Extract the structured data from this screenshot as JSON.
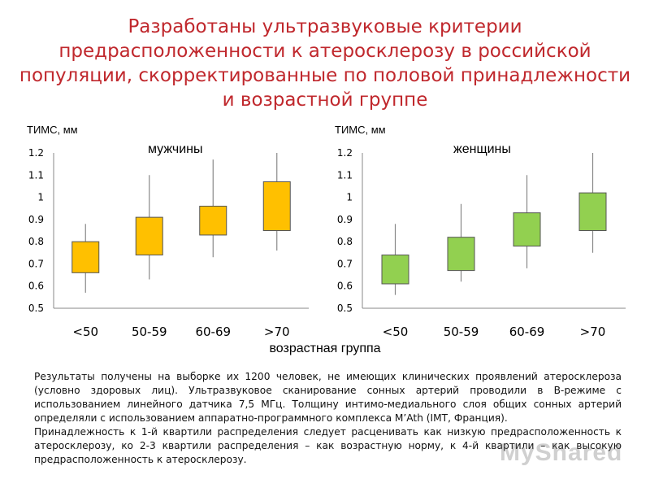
{
  "title": "Разработаны ультразвуковые критерии предрасположенности к атеросклерозу в российской популяции, скорректированные по половой принадлежности и возрастной группе",
  "xaxis_title": "возрастная группа",
  "paragraphs": [
    "Результаты получены на выборке их 1200 человек, не имеющих клинических проявлений атеросклероза (условно здоровых лиц). Ультразвуковое сканирование сонных артерий проводили в В-режиме с использованием линейного датчика 7,5 МГц. Толщину интимо-медиального слоя общих сонных артерий определяли с использованием аппаратно-программного комплекса M’Ath (IMT, Франция).",
    "Принадлежность к 1-й квартили распределения следует расценивать как низкую предрасположенность к атеросклерозу, ко 2-3 квартили распределения – как возрастную норму, к 4-й квартили – как высокую предрасположенность к атеросклерозу."
  ],
  "watermark": "MyShared",
  "chart_data": [
    {
      "type": "box",
      "title": "мужчины",
      "ylabel": "ТИМС, мм",
      "categories": [
        "<50",
        "50-59",
        "60-69",
        ">70"
      ],
      "ylim": [
        0.5,
        1.2
      ],
      "yticks": [
        "0.5",
        "0.6",
        "0.7",
        "0.8",
        "0.9",
        "1",
        "1.1",
        "1.2"
      ],
      "color": "#ffc000",
      "boxes": [
        {
          "min": 0.57,
          "q1": 0.66,
          "q3": 0.8,
          "max": 0.88
        },
        {
          "min": 0.63,
          "q1": 0.74,
          "q3": 0.91,
          "max": 1.1
        },
        {
          "min": 0.73,
          "q1": 0.83,
          "q3": 0.96,
          "max": 1.17
        },
        {
          "min": 0.76,
          "q1": 0.85,
          "q3": 1.07,
          "max": 1.2
        }
      ]
    },
    {
      "type": "box",
      "title": "женщины",
      "ylabel": "ТИМС, мм",
      "categories": [
        "<50",
        "50-59",
        "60-69",
        ">70"
      ],
      "ylim": [
        0.5,
        1.2
      ],
      "yticks": [
        "0.5",
        "0.6",
        "0.7",
        "0.8",
        "0.9",
        "1",
        "1.1",
        "1.2"
      ],
      "color": "#92d050",
      "boxes": [
        {
          "min": 0.56,
          "q1": 0.61,
          "q3": 0.74,
          "max": 0.88
        },
        {
          "min": 0.62,
          "q1": 0.67,
          "q3": 0.82,
          "max": 0.97
        },
        {
          "min": 0.68,
          "q1": 0.78,
          "q3": 0.93,
          "max": 1.1
        },
        {
          "min": 0.75,
          "q1": 0.85,
          "q3": 1.02,
          "max": 1.2
        }
      ]
    }
  ]
}
